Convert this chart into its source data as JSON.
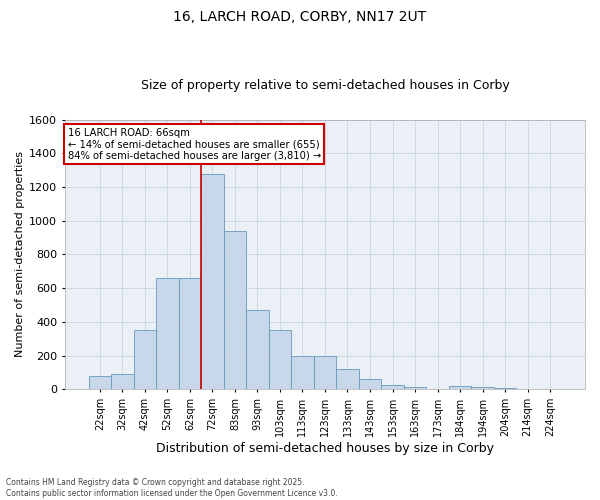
{
  "title_line1": "16, LARCH ROAD, CORBY, NN17 2UT",
  "title_line2": "Size of property relative to semi-detached houses in Corby",
  "xlabel": "Distribution of semi-detached houses by size in Corby",
  "ylabel": "Number of semi-detached properties",
  "footnote": "Contains HM Land Registry data © Crown copyright and database right 2025.\nContains public sector information licensed under the Open Government Licence v3.0.",
  "bin_labels": [
    "22sqm",
    "32sqm",
    "42sqm",
    "52sqm",
    "62sqm",
    "72sqm",
    "83sqm",
    "93sqm",
    "103sqm",
    "113sqm",
    "123sqm",
    "133sqm",
    "143sqm",
    "153sqm",
    "163sqm",
    "173sqm",
    "184sqm",
    "194sqm",
    "204sqm",
    "214sqm",
    "224sqm"
  ],
  "bar_values": [
    80,
    90,
    350,
    660,
    660,
    1280,
    940,
    470,
    350,
    200,
    200,
    120,
    60,
    25,
    15,
    0,
    20,
    15,
    10,
    0,
    0
  ],
  "bar_color": "#c8d8ea",
  "bar_edge_color": "#6699bb",
  "ylim": [
    0,
    1600
  ],
  "yticks": [
    0,
    200,
    400,
    600,
    800,
    1000,
    1200,
    1400,
    1600
  ],
  "vline_bin_index": 5,
  "annotation_title": "16 LARCH ROAD: 66sqm",
  "annotation_line1": "← 14% of semi-detached houses are smaller (655)",
  "annotation_line2": "84% of semi-detached houses are larger (3,810) →",
  "annotation_box_color": "#ffffff",
  "annotation_border_color": "#cc0000",
  "grid_color": "#ccd8e4",
  "background_color": "#eaf0f6",
  "title1_fontsize": 10,
  "title2_fontsize": 9,
  "tick_fontsize": 7,
  "ylabel_fontsize": 8,
  "xlabel_fontsize": 9
}
